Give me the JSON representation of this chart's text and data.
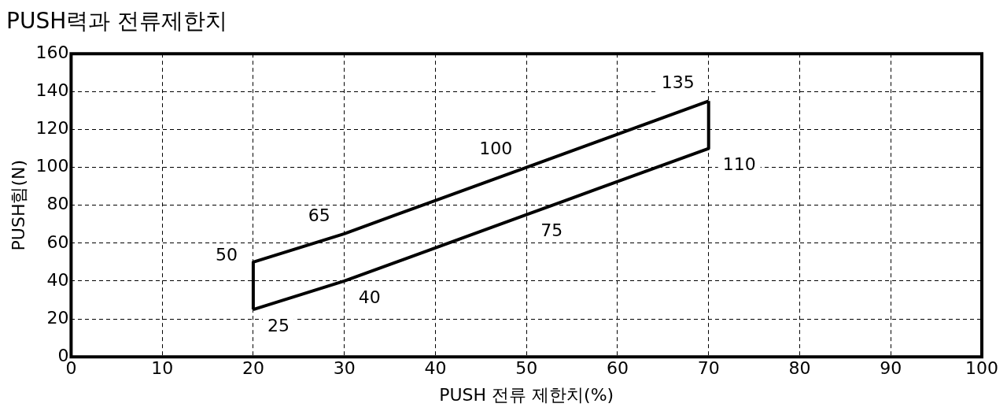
{
  "chart_data": {
    "type": "line",
    "title": "PUSH력과 전류제한치",
    "xlabel": "PUSH 전류 제한치(%)",
    "ylabel": "PUSH힘(N)",
    "series": [
      {
        "color": "#000000",
        "x": [
          20,
          20,
          30,
          50,
          70
        ],
        "values": [
          25,
          50,
          65,
          100,
          135
        ],
        "value_labels": [
          null,
          "50",
          "65",
          "100",
          "135"
        ]
      },
      {
        "color": "#000000",
        "x": [
          20,
          30,
          50,
          70,
          70
        ],
        "values": [
          25,
          40,
          75,
          110,
          135
        ],
        "value_labels": [
          "25",
          "40",
          "75",
          "110",
          null
        ]
      }
    ],
    "xlim": [
      0,
      100
    ],
    "xticks": [
      0,
      10,
      20,
      30,
      40,
      50,
      60,
      70,
      80,
      90,
      100
    ],
    "ylim": [
      0,
      160
    ],
    "yticks": [
      0,
      20,
      40,
      60,
      80,
      100,
      120,
      140,
      160
    ],
    "grid": true,
    "legend": false,
    "marker": "none",
    "line_style": "solid"
  }
}
